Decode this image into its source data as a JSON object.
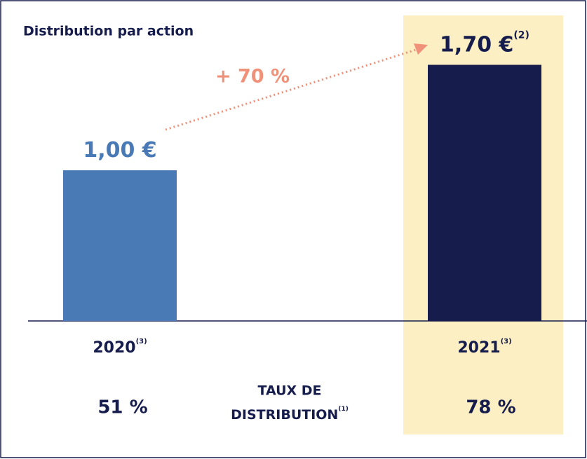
{
  "chart_data": {
    "type": "bar",
    "title": "Distribution par action",
    "categories": [
      "2020",
      "2021"
    ],
    "category_notes": [
      "(3)",
      "(3)"
    ],
    "values": [
      1.0,
      1.7
    ],
    "value_labels": [
      "1,00 €",
      "1,70 €"
    ],
    "value_label_notes": [
      null,
      "(2)"
    ],
    "colors": [
      "#4a7ab5",
      "#161d4d"
    ],
    "annotation": "+ 70 %",
    "payout_ratio": {
      "label_lines": [
        "TAUX DE",
        "DISTRIBUTION"
      ],
      "note": "(1)",
      "values": [
        51,
        78
      ],
      "value_labels": [
        "51 %",
        "78 %"
      ]
    }
  }
}
